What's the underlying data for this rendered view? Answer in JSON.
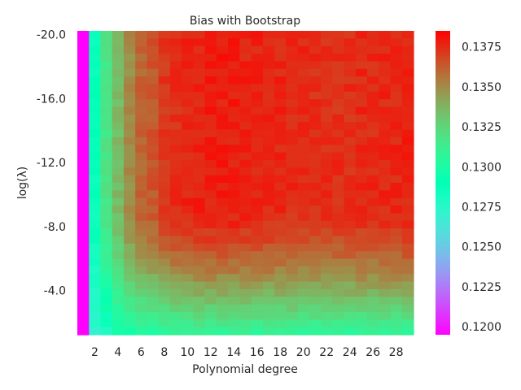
{
  "chart_data": {
    "type": "heatmap",
    "title": "Bias with Bootstrap",
    "xlabel": "Polynomial degree",
    "ylabel": "log(λ)",
    "x": {
      "values": [
        1,
        2,
        3,
        4,
        5,
        6,
        7,
        8,
        9,
        10,
        11,
        12,
        13,
        14,
        15,
        16,
        17,
        18,
        19,
        20,
        21,
        22,
        23,
        24,
        25,
        26,
        27,
        28,
        29
      ],
      "tick_labels": [
        "2",
        "4",
        "6",
        "8",
        "10",
        "12",
        "14",
        "16",
        "18",
        "20",
        "22",
        "24",
        "26",
        "28"
      ],
      "tick_values": [
        2,
        4,
        6,
        8,
        10,
        12,
        14,
        16,
        18,
        20,
        22,
        24,
        26,
        28
      ]
    },
    "y": {
      "range": [
        -20.0,
        -1.0
      ],
      "rows": 40,
      "tick_labels": [
        "-20.0",
        "-16.0",
        "-12.0",
        "-8.0",
        "-4.0"
      ],
      "tick_values": [
        -20.0,
        -16.0,
        -12.0,
        -8.0,
        -4.0
      ]
    },
    "colorbar": {
      "colormap": "rainbow",
      "vmin": 0.1195,
      "vmax": 0.1385,
      "tick_labels": [
        "0.1200",
        "0.1225",
        "0.1250",
        "0.1275",
        "0.1300",
        "0.1325",
        "0.1350",
        "0.1375"
      ],
      "tick_values": [
        0.12,
        0.1225,
        0.125,
        0.1275,
        0.13,
        0.1325,
        0.135,
        0.1375
      ]
    },
    "value_model": {
      "degree_plateau": [
        0.1195,
        0.1288,
        0.1318,
        0.1335,
        0.135,
        0.136,
        0.1364,
        0.1372,
        0.1374,
        0.1376,
        0.1377,
        0.1378,
        0.1378,
        0.1378,
        0.1377,
        0.1377,
        0.1376,
        0.1376,
        0.1375,
        0.1375,
        0.1374,
        0.1374,
        0.1374,
        0.1374,
        0.1375,
        0.1375,
        0.1376,
        0.1376,
        0.1377
      ],
      "bottom_row_values": [
        0.1195,
        0.1272,
        0.128,
        0.1292,
        0.1298,
        0.13,
        0.1302,
        0.1303,
        0.1304,
        0.1305,
        0.1306,
        0.1306,
        0.1306,
        0.1306,
        0.1306,
        0.1306,
        0.1306,
        0.1306,
        0.1306,
        0.1306,
        0.1306,
        0.1306,
        0.1306,
        0.1306,
        0.1306,
        0.1306,
        0.1306,
        0.1306,
        0.1306
      ],
      "regularization_onset_log_lambda": -9.0
    }
  }
}
